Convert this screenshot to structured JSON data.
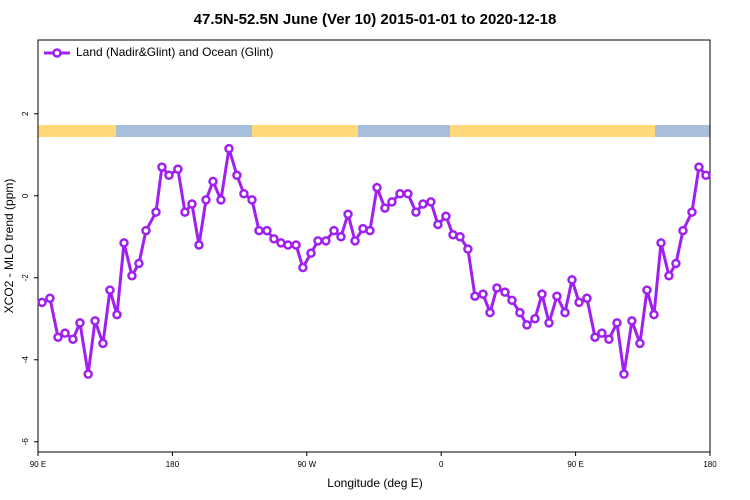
{
  "chart_data": {
    "type": "line",
    "title": "47.5N-52.5N June (Ver 10)   2015-01-01 to 2020-12-18",
    "x_label": "Longitude (deg E)",
    "y_label": "XCO2 - MLO trend (ppm)",
    "xlim": [
      90,
      540
    ],
    "xticks": [
      {
        "value": 90,
        "label": "90 E"
      },
      {
        "value": 180,
        "label": "180"
      },
      {
        "value": 270,
        "label": "90 W"
      },
      {
        "value": 360,
        "label": "0"
      },
      {
        "value": 450,
        "label": "90 E"
      },
      {
        "value": 540,
        "label": "180"
      }
    ],
    "ylim": [
      -6.25,
      3.8
    ],
    "yticks": [
      -6,
      -4,
      -2,
      0,
      2
    ],
    "legend": "top-left",
    "series": [
      {
        "name": "Land (Nadir&Glint) and Ocean (Glint)",
        "color": "#a020f0",
        "x": [
          92.7,
          98.0,
          103.4,
          108.1,
          113.4,
          118.1,
          123.6,
          128.2,
          133.5,
          138.2,
          142.9,
          147.6,
          152.9,
          157.6,
          162.3,
          169.0,
          173.0,
          177.7,
          183.7,
          188.4,
          193.1,
          197.8,
          202.5,
          207.2,
          212.5,
          217.9,
          223.2,
          227.9,
          233.3,
          238.0,
          243.3,
          248.0,
          252.7,
          257.4,
          262.8,
          267.4,
          272.8,
          277.5,
          282.8,
          288.2,
          292.9,
          297.6,
          302.3,
          307.6,
          312.3,
          317.0,
          322.3,
          327.0,
          332.4,
          337.7,
          343.1,
          347.8,
          353.1,
          357.8,
          363.2,
          367.9,
          372.6,
          377.9,
          382.6,
          388.0,
          392.7,
          397.3,
          402.7,
          407.4,
          412.7,
          417.4,
          422.8,
          427.5,
          432.2,
          437.5,
          442.9,
          447.6,
          452.3,
          457.6,
          463.0,
          467.6,
          472.3,
          477.7,
          482.4,
          487.7,
          493.1,
          497.8,
          502.5,
          507.2,
          512.5,
          517.2,
          521.9,
          527.9,
          532.6,
          537.3
        ],
        "values": [
          -2.6,
          -2.5,
          -3.45,
          -3.35,
          -3.5,
          -3.1,
          -4.35,
          -3.05,
          -3.6,
          -2.3,
          -2.9,
          -1.15,
          -1.95,
          -1.65,
          -0.85,
          -0.4,
          0.7,
          0.5,
          0.65,
          -0.4,
          -0.2,
          -1.2,
          -0.1,
          0.35,
          -0.1,
          1.15,
          0.5,
          0.05,
          -0.1,
          -0.85,
          -0.85,
          -1.05,
          -1.15,
          -1.2,
          -1.2,
          -1.75,
          -1.4,
          -1.1,
          -1.1,
          -0.85,
          -1.0,
          -0.45,
          -1.1,
          -0.8,
          -0.85,
          0.2,
          -0.3,
          -0.15,
          0.05,
          0.05,
          -0.4,
          -0.2,
          -0.15,
          -0.7,
          -0.5,
          -0.95,
          -1.0,
          -1.3,
          -2.45,
          -2.4,
          -2.85,
          -2.25,
          -2.35,
          -2.55,
          -2.85,
          -3.15,
          -3.0,
          -2.4,
          -3.1,
          -2.45,
          -2.85,
          -2.05,
          -2.6,
          -2.5,
          -3.45,
          -3.35,
          -3.5,
          -3.1,
          -4.35,
          -3.05,
          -3.6,
          -2.3,
          -2.9,
          -1.15,
          -1.95,
          -1.65,
          -0.85,
          -0.4,
          0.7,
          0.5
        ]
      }
    ]
  }
}
